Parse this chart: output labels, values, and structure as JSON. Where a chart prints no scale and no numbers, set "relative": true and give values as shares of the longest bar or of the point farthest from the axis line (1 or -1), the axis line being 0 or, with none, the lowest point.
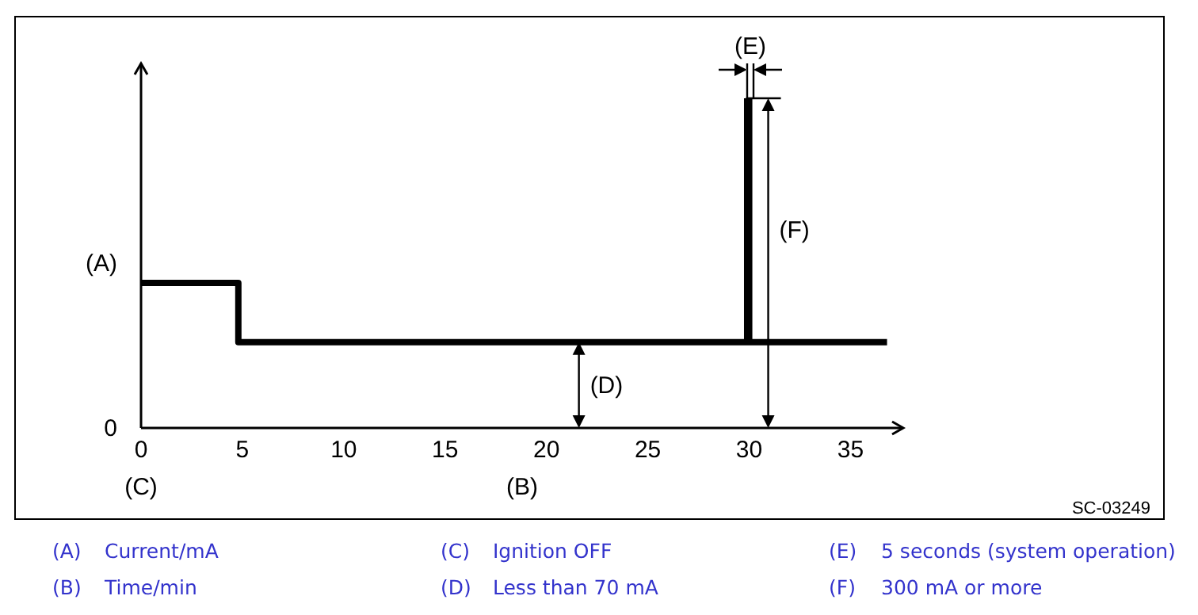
{
  "chart_data": {
    "type": "step",
    "relative": true,
    "xlabel": "(B)",
    "ylabel": "(A)",
    "x": [
      0,
      4.8,
      29.9,
      30.0,
      36.8
    ],
    "series": [
      {
        "color": "#000000",
        "values": [
          0.44,
          0.26,
          1,
          0.26,
          0.26
        ]
      }
    ],
    "xlim": [
      0,
      37.6
    ],
    "xticks": [
      0,
      5,
      10,
      15,
      20,
      25,
      30,
      35
    ],
    "grid": false,
    "legend": false,
    "marker": "none",
    "line_style": "solid",
    "annotations": [
      "0",
      "SC-03249",
      "(A) Current/mA",
      "(B) Time/min",
      "(C) Ignition OFF",
      "(D) Less than 70 mA",
      "(E) 5 seconds (system operation)",
      "(F) 300 mA or more",
      "(C)",
      "(F)",
      {
        "text": "(D)",
        "x": 21.6,
        "y": 0.26
      },
      {
        "text": "(E)",
        "x": 29.9,
        "y": 1
      }
    ]
  }
}
